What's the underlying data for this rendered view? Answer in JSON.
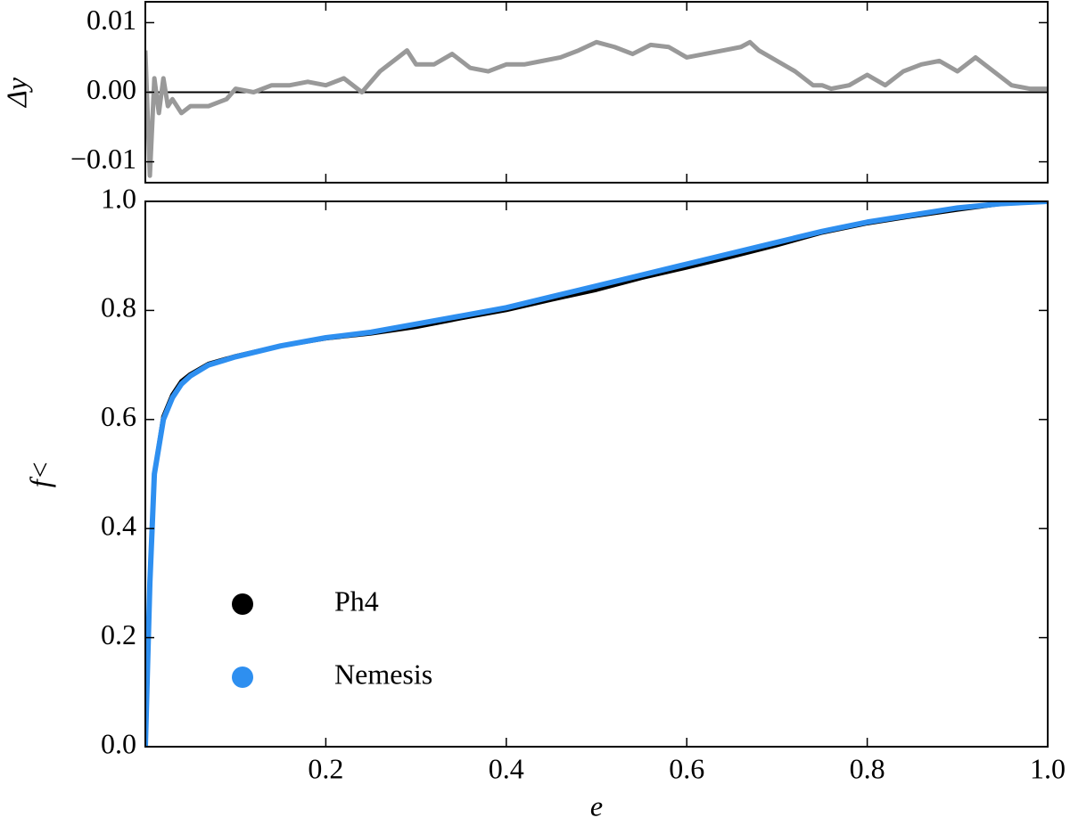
{
  "chart_data": [
    {
      "type": "line",
      "ylabel": "Δy",
      "xlim": [
        0,
        1
      ],
      "ylim": [
        -0.013,
        0.013
      ],
      "xticks": [
        0.2,
        0.4,
        0.6,
        0.8,
        1.0
      ],
      "show_xtick_labels": false,
      "yticks": [
        {
          "value": -0.01,
          "label": "−0.01"
        },
        {
          "value": 0,
          "label": "0.00"
        },
        0.01
      ],
      "hline": 0,
      "hline_color": "#000000",
      "x": [
        0,
        0.005,
        0.01,
        0.015,
        0.02,
        0.025,
        0.03,
        0.04,
        0.05,
        0.06,
        0.07,
        0.08,
        0.09,
        0.1,
        0.12,
        0.14,
        0.16,
        0.18,
        0.2,
        0.22,
        0.24,
        0.26,
        0.28,
        0.29,
        0.3,
        0.32,
        0.34,
        0.36,
        0.38,
        0.4,
        0.42,
        0.44,
        0.46,
        0.48,
        0.5,
        0.52,
        0.54,
        0.56,
        0.58,
        0.6,
        0.62,
        0.64,
        0.66,
        0.67,
        0.68,
        0.7,
        0.72,
        0.74,
        0.75,
        0.76,
        0.78,
        0.8,
        0.82,
        0.84,
        0.86,
        0.88,
        0.9,
        0.92,
        0.94,
        0.96,
        0.98,
        1.0
      ],
      "series": [
        {
          "color": "#999999",
          "width": 5,
          "values": [
            0.006,
            -0.012,
            0.002,
            -0.003,
            0.002,
            -0.002,
            -0.001,
            -0.003,
            -0.002,
            -0.002,
            -0.002,
            -0.0015,
            -0.001,
            0.0005,
            0,
            0.001,
            0.001,
            0.0015,
            0.001,
            0.002,
            0,
            0.003,
            0.005,
            0.006,
            0.004,
            0.004,
            0.0055,
            0.0035,
            0.003,
            0.004,
            0.004,
            0.0045,
            0.005,
            0.006,
            0.0072,
            0.0065,
            0.0055,
            0.0068,
            0.0065,
            0.005,
            0.0055,
            0.006,
            0.0065,
            0.0072,
            0.006,
            0.0045,
            0.003,
            0.001,
            0.001,
            0.0005,
            0.001,
            0.0025,
            0.001,
            0.003,
            0.004,
            0.0045,
            0.003,
            0.005,
            0.003,
            0.001,
            0.0005,
            0.0005
          ]
        }
      ]
    },
    {
      "type": "line",
      "xlabel": "e",
      "ylabel": "f<",
      "xlim": [
        0,
        1
      ],
      "ylim": [
        0,
        1
      ],
      "xticks": [
        0.2,
        0.4,
        0.6,
        0.8,
        {
          "value": 1.0,
          "label": "1.0"
        }
      ],
      "show_xtick_labels": true,
      "yticks": [
        {
          "value": 0,
          "label": "0.0"
        },
        0.2,
        0.4,
        0.6,
        0.8,
        {
          "value": 1.0,
          "label": "1.0"
        }
      ],
      "legend": "lower left",
      "x": [
        0,
        0.005,
        0.01,
        0.02,
        0.03,
        0.04,
        0.05,
        0.07,
        0.1,
        0.15,
        0.2,
        0.25,
        0.3,
        0.35,
        0.4,
        0.45,
        0.5,
        0.55,
        0.6,
        0.65,
        0.7,
        0.75,
        0.8,
        0.85,
        0.9,
        0.95,
        1.0
      ],
      "series": [
        {
          "name": "Ph4",
          "color": "#000000",
          "width": 5,
          "values": [
            0,
            0.3,
            0.5,
            0.605,
            0.645,
            0.67,
            0.683,
            0.702,
            0.716,
            0.735,
            0.749,
            0.758,
            0.77,
            0.786,
            0.801,
            0.82,
            0.838,
            0.86,
            0.879,
            0.899,
            0.92,
            0.943,
            0.96,
            0.973,
            0.985,
            0.996,
            1.0
          ]
        },
        {
          "name": "Nemesis",
          "color": "#2e8ff0",
          "width": 6,
          "values": [
            0,
            0.3,
            0.5,
            0.6,
            0.64,
            0.665,
            0.68,
            0.7,
            0.715,
            0.735,
            0.75,
            0.76,
            0.775,
            0.79,
            0.805,
            0.825,
            0.845,
            0.865,
            0.885,
            0.905,
            0.925,
            0.945,
            0.962,
            0.975,
            0.988,
            0.996,
            1.0
          ]
        }
      ]
    }
  ]
}
